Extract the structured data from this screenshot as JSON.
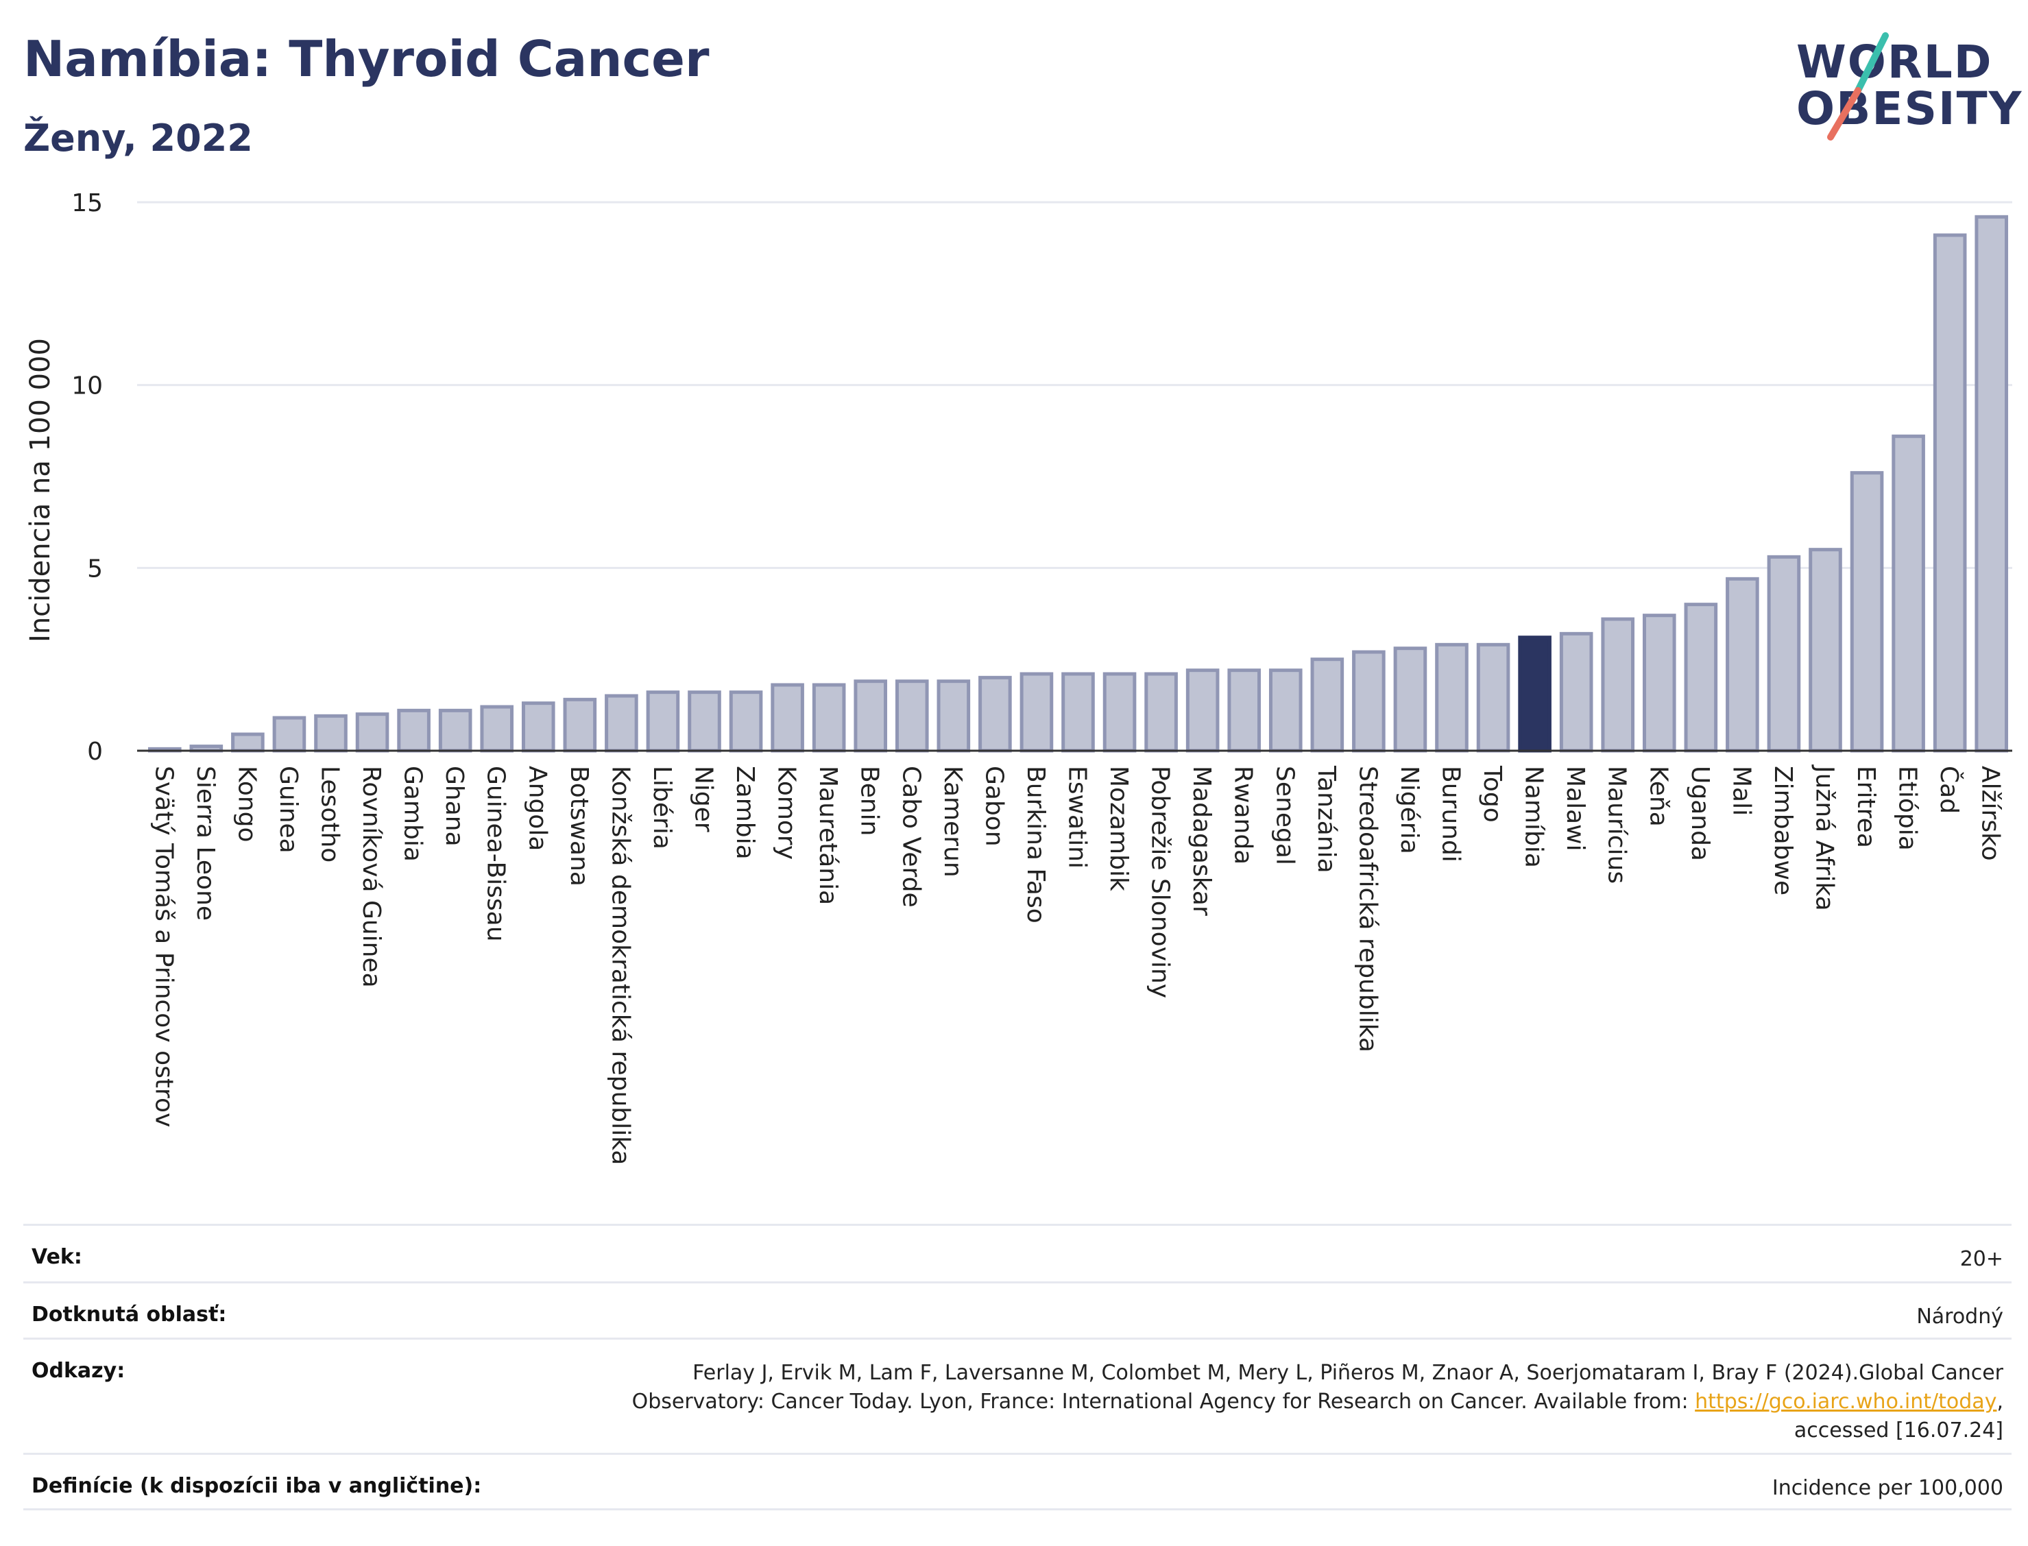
{
  "header": {
    "title": "Namíbia: Thyroid Cancer",
    "subtitle": "Ženy, 2022"
  },
  "logo": {
    "line1": "WORLD",
    "line2": "OBESITY",
    "accent_teal": "#3bbfad",
    "accent_red": "#e8705f"
  },
  "colors": {
    "bar_fill": "#bfc3d3",
    "bar_stroke": "#9096b4",
    "highlight": "#2b3561",
    "grid": "#e6e8ef",
    "axis": "#333333"
  },
  "chart_data": {
    "type": "bar",
    "ylabel": "Incidencia na 100 000",
    "xlabel": "",
    "ylim": [
      0,
      15
    ],
    "yticks": [
      0,
      5,
      10,
      15
    ],
    "grid": true,
    "highlight_category": "Namíbia",
    "categories": [
      "Svätý Tomáš a Princov ostrov",
      "Sierra Leone",
      "Kongo",
      "Guinea",
      "Lesotho",
      "Rovníková Guinea",
      "Gambia",
      "Ghana",
      "Guinea-Bissau",
      "Angola",
      "Botswana",
      "Konžská demokratická republika",
      "Libéria",
      "Niger",
      "Zambia",
      "Komory",
      "Mauretánia",
      "Benin",
      "Cabo Verde",
      "Kamerun",
      "Gabon",
      "Burkina Faso",
      "Eswatini",
      "Mozambik",
      "Pobrežie Slonoviny",
      "Madagaskar",
      "Rwanda",
      "Senegal",
      "Tanzánia",
      "Stredoafrická republika",
      "Nigéria",
      "Burundi",
      "Togo",
      "Namíbia",
      "Malawi",
      "Maurícius",
      "Keňa",
      "Uganda",
      "Mali",
      "Zimbabwe",
      "Južná Afrika",
      "Eritrea",
      "Etiópia",
      "Čad",
      "Alžírsko"
    ],
    "values": [
      0.05,
      0.12,
      0.45,
      0.9,
      0.95,
      1.0,
      1.1,
      1.1,
      1.2,
      1.3,
      1.4,
      1.5,
      1.6,
      1.6,
      1.6,
      1.8,
      1.8,
      1.9,
      1.9,
      1.9,
      2.0,
      2.1,
      2.1,
      2.1,
      2.1,
      2.2,
      2.2,
      2.2,
      2.5,
      2.7,
      2.8,
      2.9,
      2.9,
      3.1,
      3.2,
      3.6,
      3.7,
      4.0,
      4.7,
      5.3,
      5.5,
      7.6,
      8.6,
      14.1,
      14.6
    ]
  },
  "meta": {
    "age_label": "Vek:",
    "age_value": "20+",
    "area_label": "Dotknutá oblasť:",
    "area_value": "Národný",
    "ref_label": "Odkazy:",
    "ref_line1": "Ferlay J, Ervik M, Lam F, Laversanne M, Colombet M, Mery L, Piñeros M, Znaor A, Soerjomataram I, Bray F (2024).Global Cancer",
    "ref_line2": "Observatory: Cancer Today. Lyon, France: International Agency for Research on Cancer. Available from: ",
    "ref_link": "https://gco.iarc.who.int/today",
    "ref_line2_end": ",",
    "ref_line3": "accessed [16.07.24]",
    "def_label": "Definície (k dispozícii iba v angličtine):",
    "def_value": "Incidence per 100,000"
  }
}
